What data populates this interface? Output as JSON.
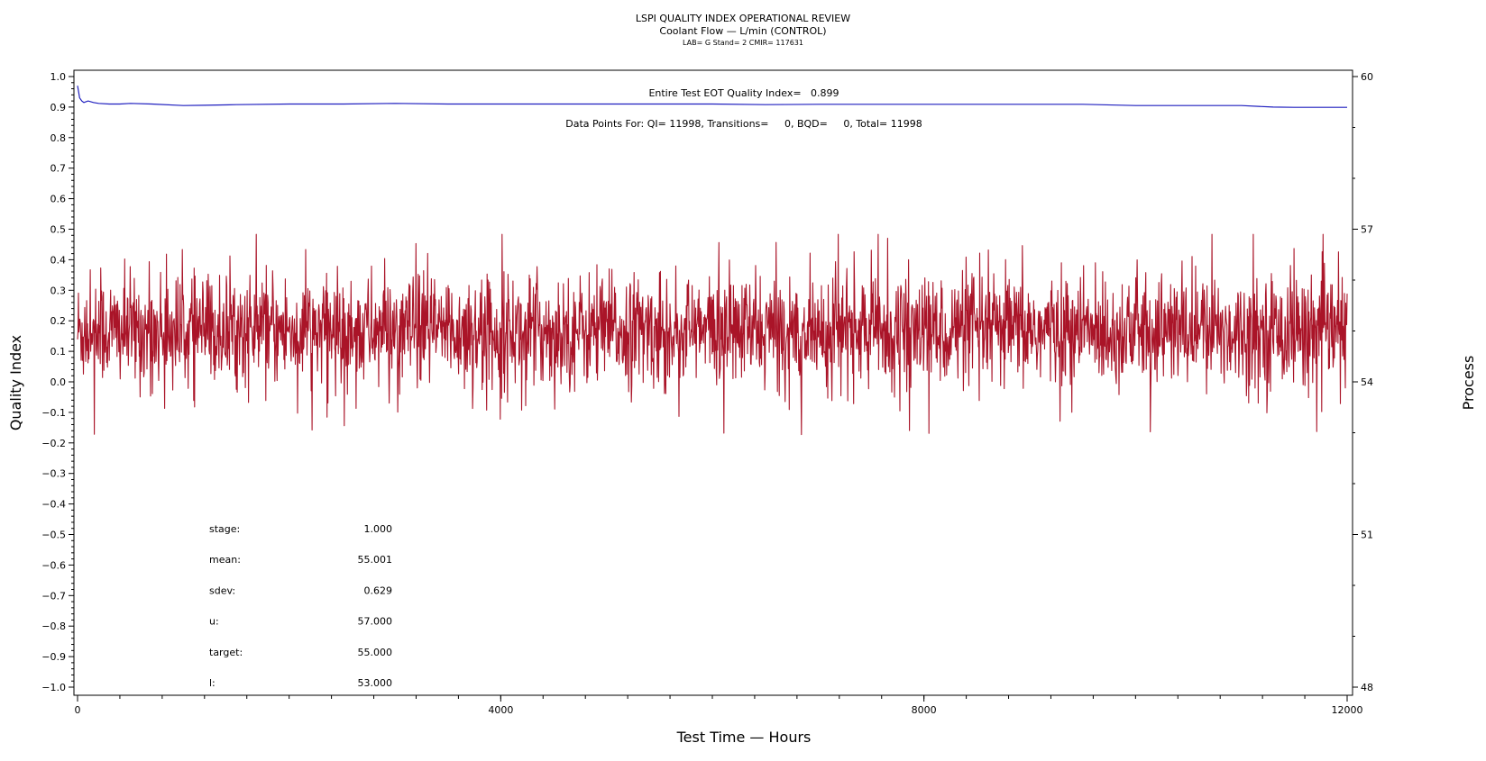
{
  "chart_data": {
    "type": "line",
    "title": "LSPI QUALITY INDEX OPERATIONAL REVIEW",
    "subtitle": "Coolant Flow — L/min (CONTROL)",
    "subsubtitle": "LAB= G Stand= 2 CMIR= 117631",
    "xlabel": "Test Time — Hours",
    "ylabel_left": "Quality Index",
    "ylabel_right": "Process",
    "xlim": [
      0,
      12000
    ],
    "x_ticks": [
      0,
      4000,
      8000,
      12000
    ],
    "ylim_left": [
      -1.0,
      1.0
    ],
    "y_ticks_left": [
      "1.0",
      "0.9",
      "0.8",
      "0.7",
      "0.6",
      "0.5",
      "0.4",
      "0.3",
      "0.2",
      "0.1",
      "0.0",
      "−0.1",
      "−0.2",
      "−0.3",
      "−0.4",
      "−0.5",
      "−0.6",
      "−0.7",
      "−0.8",
      "−0.9",
      "−1.0"
    ],
    "ylim_right": [
      48,
      60
    ],
    "y_ticks_right": [
      "60",
      "57",
      "54",
      "51",
      "48"
    ],
    "annotations": {
      "eot_quality_index": "Entire Test EOT Quality Index=   0.899",
      "data_points": "Data Points For: QI= 11998, Transitions=     0, BQD=     0, Total= 11998"
    },
    "stats": [
      {
        "label": "stage:",
        "value": "1.000"
      },
      {
        "label": "mean:",
        "value": "55.001"
      },
      {
        "label": "sdev:",
        "value": "0.629"
      },
      {
        "label": "u:",
        "value": "57.000"
      },
      {
        "label": "target:",
        "value": "55.000"
      },
      {
        "label": "l:",
        "value": "53.000"
      }
    ],
    "series": [
      {
        "axis": "left",
        "color": "#1f1fbf",
        "x": [
          0,
          10,
          20,
          40,
          60,
          100,
          150,
          200,
          300,
          400,
          500,
          700,
          1000,
          1200,
          1500,
          2000,
          2500,
          3000,
          3500,
          4000,
          5000,
          6000,
          6500,
          7000,
          8000,
          9000,
          9500,
          10000,
          10500,
          11000,
          11300,
          11500,
          12000
        ],
        "y": [
          0.97,
          0.95,
          0.93,
          0.92,
          0.915,
          0.92,
          0.915,
          0.912,
          0.91,
          0.91,
          0.912,
          0.91,
          0.905,
          0.906,
          0.908,
          0.91,
          0.91,
          0.912,
          0.91,
          0.91,
          0.91,
          0.91,
          0.908,
          0.909,
          0.909,
          0.909,
          0.909,
          0.905,
          0.905,
          0.905,
          0.9,
          0.899,
          0.899
        ]
      },
      {
        "axis": "right",
        "color": "#aa1428",
        "points": 11998,
        "mean": 55.001,
        "sdev": 0.629,
        "min": 52.9,
        "max": 56.9
      }
    ]
  }
}
